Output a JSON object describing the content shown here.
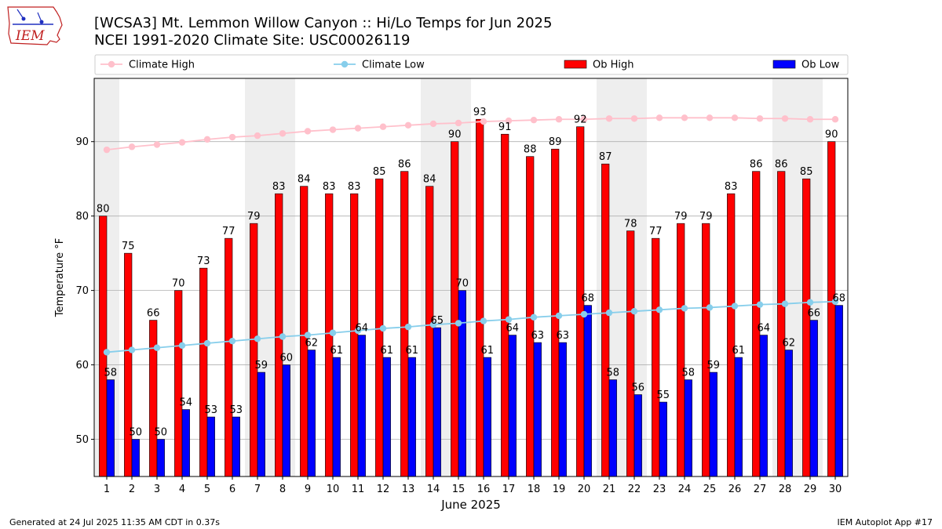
{
  "logo_text": "IEM",
  "footer": {
    "generated": "Generated at 24 Jul 2025 11:35 AM CDT in 0.37s",
    "app": "IEM Autoplot App #17"
  },
  "colors": {
    "ob_high": "#ff0000",
    "ob_low": "#0000ff",
    "climate_high": "#ffc0cb",
    "climate_low": "#87ceeb",
    "weekend_band": "#eeeeee",
    "grid": "#b0b0b0"
  },
  "chart_data": {
    "type": "bar",
    "title": "[WCSA3] Mt. Lemmon Willow Canyon :: Hi/Lo Temps for Jun 2025",
    "subtitle": "NCEI 1991-2020 Climate Site: USC00026119",
    "xlabel": "June 2025",
    "ylabel": "Temperature °F",
    "ylim": [
      45,
      98.5
    ],
    "yticks": [
      50,
      60,
      70,
      80,
      90
    ],
    "grid": "horizontal",
    "legend_position": "top",
    "categories": [
      1,
      2,
      3,
      4,
      5,
      6,
      7,
      8,
      9,
      10,
      11,
      12,
      13,
      14,
      15,
      16,
      17,
      18,
      19,
      20,
      21,
      22,
      23,
      24,
      25,
      26,
      27,
      28,
      29,
      30
    ],
    "shaded_days": [
      1,
      7,
      8,
      14,
      15,
      21,
      22,
      28,
      29
    ],
    "series": [
      {
        "name": "Ob High",
        "kind": "bar",
        "values": [
          80,
          75,
          66,
          70,
          73,
          77,
          79,
          83,
          84,
          83,
          83,
          85,
          86,
          84,
          90,
          93,
          91,
          88,
          89,
          92,
          87,
          78,
          77,
          79,
          79,
          83,
          86,
          86,
          85,
          90
        ]
      },
      {
        "name": "Ob Low",
        "kind": "bar",
        "values": [
          58,
          50,
          50,
          54,
          53,
          53,
          59,
          60,
          62,
          61,
          64,
          61,
          61,
          65,
          70,
          61,
          64,
          63,
          63,
          68,
          58,
          56,
          55,
          58,
          59,
          61,
          64,
          62,
          66,
          68
        ]
      },
      {
        "name": "Climate High",
        "kind": "line",
        "values": [
          88.9,
          89.3,
          89.6,
          89.9,
          90.3,
          90.6,
          90.8,
          91.1,
          91.4,
          91.6,
          91.8,
          92.0,
          92.2,
          92.4,
          92.5,
          92.7,
          92.8,
          92.9,
          93.0,
          93.0,
          93.1,
          93.1,
          93.2,
          93.2,
          93.2,
          93.2,
          93.1,
          93.1,
          93.0,
          93.0
        ]
      },
      {
        "name": "Climate Low",
        "kind": "line",
        "values": [
          61.7,
          62.0,
          62.3,
          62.6,
          62.9,
          63.2,
          63.5,
          63.8,
          64.0,
          64.3,
          64.6,
          64.9,
          65.1,
          65.4,
          65.6,
          65.9,
          66.1,
          66.4,
          66.6,
          66.8,
          67.0,
          67.2,
          67.4,
          67.6,
          67.7,
          67.9,
          68.1,
          68.2,
          68.4,
          68.5
        ]
      }
    ]
  }
}
